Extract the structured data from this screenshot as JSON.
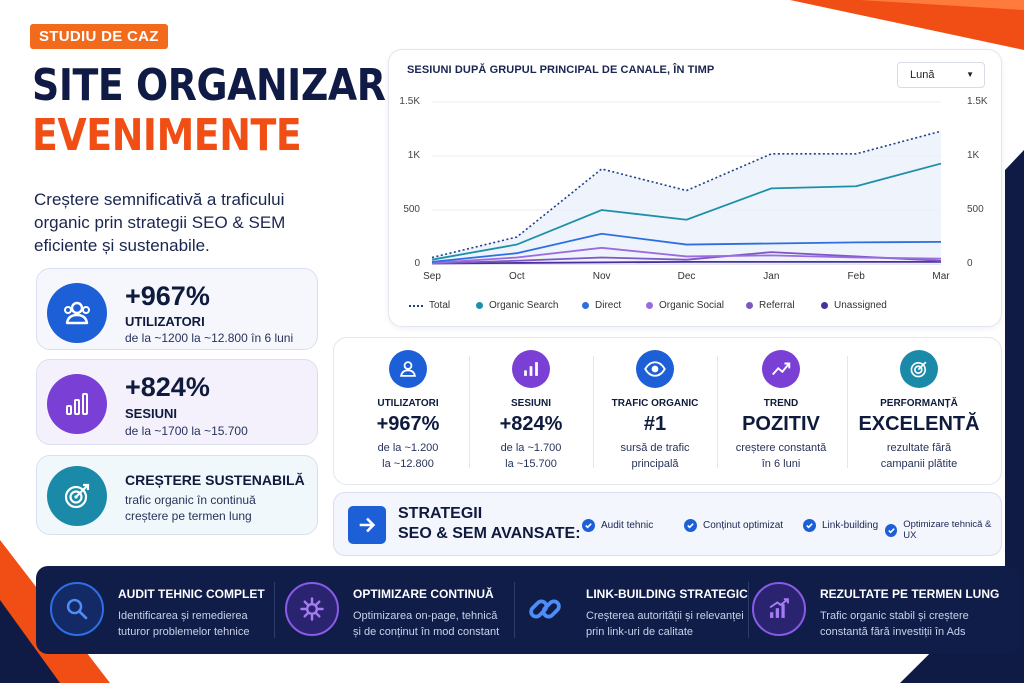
{
  "tag": "STUDIU DE CAZ",
  "title_line1": "SITE ORGANIZARE",
  "title_line2": "EVENIMENTE",
  "subtitle": "Creștere semnificativă a traficului organic prin strategii SEO & SEM eficiente și sustenabile.",
  "colors": {
    "navy": "#0f1d48",
    "orange": "#f04e14",
    "blue": "#1d5fd6",
    "purple": "#7a3fd4",
    "teal": "#1a8aa8"
  },
  "stat_cards": [
    {
      "icon": "users-icon",
      "big": "+967%",
      "label": "UTILIZATORI",
      "detail": "de la ~1200 la ~12.800 în 6 luni"
    },
    {
      "icon": "bar-chart-icon",
      "big": "+824%",
      "label": "SESIUNI",
      "detail": "de la ~1700 la ~15.700"
    },
    {
      "icon": "target-icon",
      "label": "CREȘTERE SUSTENABILĂ",
      "detail_line1": "trafic organic în continuă",
      "detail_line2": "creștere pe termen lung"
    }
  ],
  "chart_data": {
    "type": "line",
    "title": "SESIUNI DUPĂ GRUPUL PRINCIPAL DE CANALE, ÎN TIMP",
    "dropdown": "Lună",
    "categories": [
      "Sep",
      "Oct",
      "Nov",
      "Dec",
      "Jan",
      "Feb",
      "Mar"
    ],
    "y_ticks": [
      "0",
      "500",
      "1K",
      "1.5K"
    ],
    "ylim": [
      0,
      1500
    ],
    "series": [
      {
        "name": "Total",
        "values": [
          60,
          250,
          880,
          680,
          1020,
          1020,
          1230
        ],
        "color": "#1d3f8a",
        "dashed": true
      },
      {
        "name": "Organic Search",
        "values": [
          40,
          180,
          500,
          410,
          700,
          720,
          930
        ],
        "color": "#1e8fa8"
      },
      {
        "name": "Direct",
        "values": [
          20,
          100,
          280,
          180,
          190,
          200,
          205
        ],
        "color": "#2d6fe0"
      },
      {
        "name": "Organic Social",
        "values": [
          10,
          60,
          150,
          70,
          80,
          60,
          50
        ],
        "color": "#9b6be0"
      },
      {
        "name": "Referral",
        "values": [
          5,
          30,
          60,
          40,
          110,
          70,
          30
        ],
        "color": "#7e57c2"
      },
      {
        "name": "Unassigned",
        "values": [
          5,
          10,
          15,
          20,
          20,
          20,
          20
        ],
        "color": "#4a2fa0"
      }
    ]
  },
  "metrics": [
    {
      "icon": "users-icon",
      "label": "UTILIZATORI",
      "big": "+967%",
      "line1": "de la ~1.200",
      "line2": "la ~12.800"
    },
    {
      "icon": "bar-chart-icon",
      "label": "SESIUNI",
      "big": "+824%",
      "line1": "de la ~1.700",
      "line2": "la ~15.700"
    },
    {
      "icon": "eye-icon",
      "label": "TRAFIC ORGANIC",
      "big": "#1",
      "line1": "sursă de trafic",
      "line2": "principală"
    },
    {
      "icon": "trend-up-icon",
      "label": "TREND",
      "big": "POZITIV",
      "line1": "creștere constantă",
      "line2": "în 6 luni"
    },
    {
      "icon": "target-icon",
      "label": "PERFORMANȚĂ",
      "big": "EXCELENTĂ",
      "line1": "rezultate fără",
      "line2": "campanii plătite"
    }
  ],
  "strategy": {
    "title_line1": "STRATEGII",
    "title_line2": "SEO & SEM AVANSATE:",
    "items": [
      "Audit tehnic",
      "Conținut optimizat",
      "Link-building",
      "Optimizare tehnică & UX"
    ]
  },
  "bottom": [
    {
      "icon": "search-icon",
      "title": "AUDIT TEHNIC COMPLET",
      "line1": "Identificarea și remedierea",
      "line2": "tuturor problemelor tehnice"
    },
    {
      "icon": "gear-icon",
      "title": "OPTIMIZARE CONTINUĂ",
      "line1": "Optimizarea on-page, tehnică",
      "line2": "și de conținut în mod constant"
    },
    {
      "icon": "link-icon",
      "title": "LINK-BUILDING STRATEGIC",
      "line1": "Creșterea autorității și relevanței",
      "line2": "prin link-uri de calitate"
    },
    {
      "icon": "growth-chart-icon",
      "title": "REZULTATE PE TERMEN LUNG",
      "line1": "Trafic organic stabil și creștere",
      "line2": "constantă fără investiții în Ads"
    }
  ]
}
